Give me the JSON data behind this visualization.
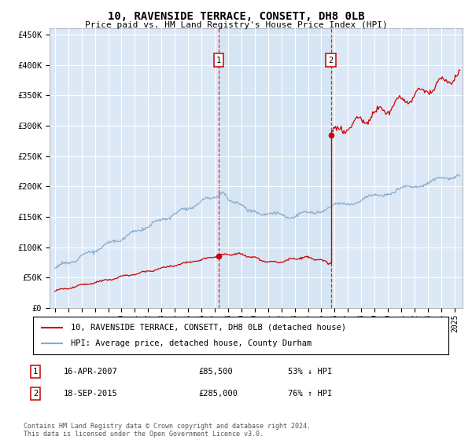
{
  "title": "10, RAVENSIDE TERRACE, CONSETT, DH8 0LB",
  "subtitle": "Price paid vs. HM Land Registry's House Price Index (HPI)",
  "ylim": [
    0,
    460000
  ],
  "yticks": [
    0,
    50000,
    100000,
    150000,
    200000,
    250000,
    300000,
    350000,
    400000,
    450000
  ],
  "ytick_labels": [
    "£0",
    "£50K",
    "£100K",
    "£150K",
    "£200K",
    "£250K",
    "£300K",
    "£350K",
    "£400K",
    "£450K"
  ],
  "xlim_start": 1994.6,
  "xlim_end": 2025.6,
  "background_color": "#ffffff",
  "plot_bg_color": "#dce8f5",
  "grid_color": "#ffffff",
  "red_color": "#cc0000",
  "blue_color": "#88aacc",
  "transaction1_x": 2007.29,
  "transaction1_y": 85500,
  "transaction2_x": 2015.72,
  "transaction2_y": 285000,
  "legend_line1": "10, RAVENSIDE TERRACE, CONSETT, DH8 0LB (detached house)",
  "legend_line2": "HPI: Average price, detached house, County Durham",
  "transaction1_label": "1",
  "transaction1_date": "16-APR-2007",
  "transaction1_price": "£85,500",
  "transaction1_hpi": "53% ↓ HPI",
  "transaction2_label": "2",
  "transaction2_date": "18-SEP-2015",
  "transaction2_price": "£285,000",
  "transaction2_hpi": "76% ↑ HPI",
  "footer": "Contains HM Land Registry data © Crown copyright and database right 2024.\nThis data is licensed under the Open Government Licence v3.0."
}
